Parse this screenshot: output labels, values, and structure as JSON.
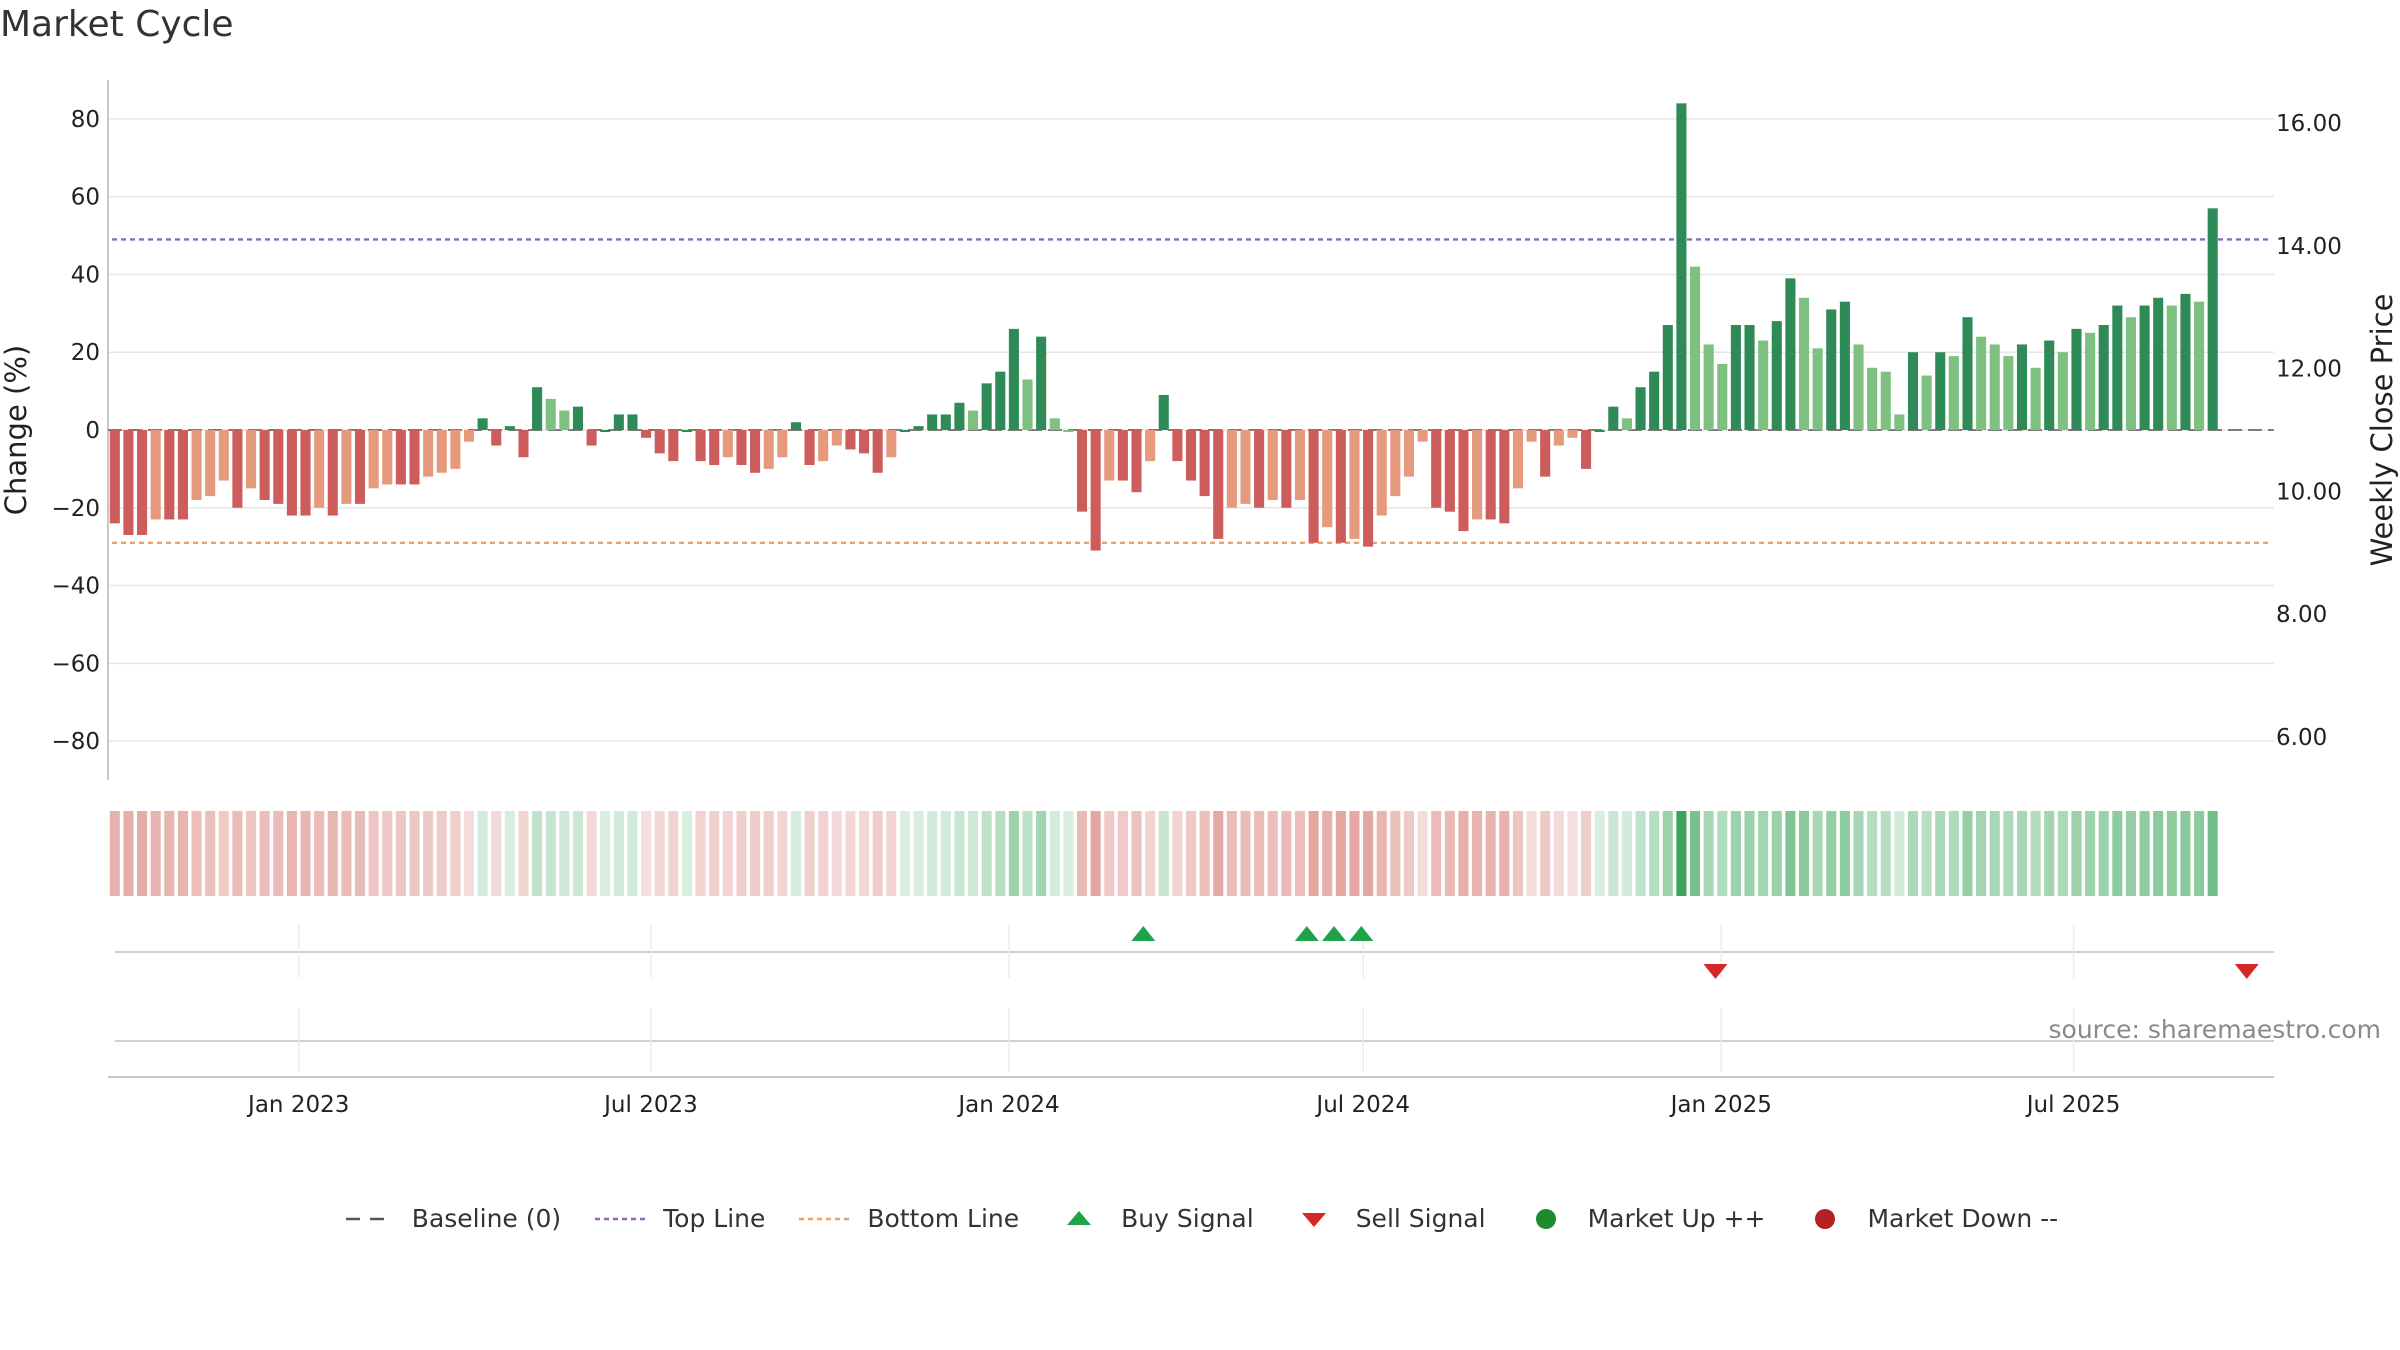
{
  "title": "Market Cycle",
  "source": "source: sharemaestro.com",
  "colors": {
    "strong_up": "#2e8b57",
    "weak_up": "#7dc07f",
    "strong_down": "#cd5c5c",
    "weak_down": "#e69a7d",
    "top_line": "#9467bd",
    "bottom_line": "#f0a060",
    "buy": "#1fa34a",
    "sell": "#d62728",
    "market_up": "#1e8c2e",
    "market_down": "#b22222"
  },
  "legend": [
    {
      "key": "baseline",
      "label": "Baseline (0)",
      "icon": "dash-line-icon"
    },
    {
      "key": "top",
      "label": "Top Line",
      "icon": "dotted-line-icon"
    },
    {
      "key": "bottom",
      "label": "Bottom Line",
      "icon": "dotted-line-icon"
    },
    {
      "key": "buy",
      "label": "Buy Signal",
      "icon": "triangle-up-icon"
    },
    {
      "key": "sell",
      "label": "Sell Signal",
      "icon": "triangle-down-icon"
    },
    {
      "key": "mup",
      "label": "Market Up ++",
      "icon": "circle-icon"
    },
    {
      "key": "mdown",
      "label": "Market Down --",
      "icon": "circle-icon"
    }
  ],
  "chart_data": {
    "type": "bar",
    "ylabel": "Change (%)",
    "y2label": "Weekly Close Price",
    "ylim": [
      -90,
      90
    ],
    "y2lim": [
      5.3,
      16.7
    ],
    "yticks": [
      80,
      60,
      40,
      20,
      0,
      -20,
      -40,
      -60,
      -80
    ],
    "y2ticks": [
      "16.00",
      "14.00",
      "12.00",
      "10.00",
      "8.00",
      "6.00"
    ],
    "xlim": [
      "2022-09-25",
      "2025-10-12"
    ],
    "xticks": [
      {
        "date": "2023-01-01",
        "label": "Jan 2023"
      },
      {
        "date": "2023-07-01",
        "label": "Jul 2023"
      },
      {
        "date": "2024-01-01",
        "label": "Jan 2024"
      },
      {
        "date": "2024-07-01",
        "label": "Jul 2024"
      },
      {
        "date": "2025-01-01",
        "label": "Jan 2025"
      },
      {
        "date": "2025-07-01",
        "label": "Jul 2025"
      }
    ],
    "top_line": 49,
    "bottom_line": -29,
    "start_week": "2022-09-25",
    "weekly_change": [
      -24,
      -27,
      -27,
      -23,
      -23,
      -23,
      -18,
      -17,
      -13,
      -20,
      -15,
      -18,
      -19,
      -22,
      -22,
      -20,
      -22,
      -19,
      -19,
      -15,
      -14,
      -14,
      -14,
      -12,
      -11,
      -10,
      -3,
      3,
      -4,
      1,
      -7,
      11,
      8,
      5,
      6,
      -4,
      0,
      4,
      4,
      -2,
      -6,
      -8,
      0,
      -8,
      -9,
      -7,
      -9,
      -11,
      -10,
      -7,
      2,
      -9,
      -8,
      -4,
      -5,
      -6,
      -11,
      -7,
      0,
      1,
      4,
      4,
      7,
      5,
      12,
      15,
      26,
      13,
      24,
      3,
      0,
      -21,
      -31,
      -13,
      -13,
      -16,
      -8,
      9,
      -8,
      -13,
      -17,
      -28,
      -20,
      -19,
      -20,
      -18,
      -20,
      -18,
      -29,
      -25,
      -29,
      -28,
      -30,
      -22,
      -17,
      -12,
      -3,
      -20,
      -21,
      -26,
      -23,
      -23,
      -24,
      -15,
      -3,
      -12,
      -4,
      -2,
      -10,
      0,
      6,
      3,
      11,
      15,
      27,
      84,
      42,
      22,
      17,
      27,
      27,
      23,
      28,
      39,
      34,
      21,
      31,
      33,
      22,
      16,
      15,
      4,
      20,
      14,
      20,
      19,
      29,
      24,
      22,
      19,
      22,
      16,
      23,
      20,
      26,
      25,
      27,
      32,
      29,
      32,
      34,
      32,
      35,
      33,
      57
    ],
    "buy_signal_dates": [
      "2024-03-10",
      "2024-06-02",
      "2024-06-16",
      "2024-06-30"
    ],
    "sell_signal_dates": [
      "2024-12-29",
      "2025-09-28"
    ]
  }
}
